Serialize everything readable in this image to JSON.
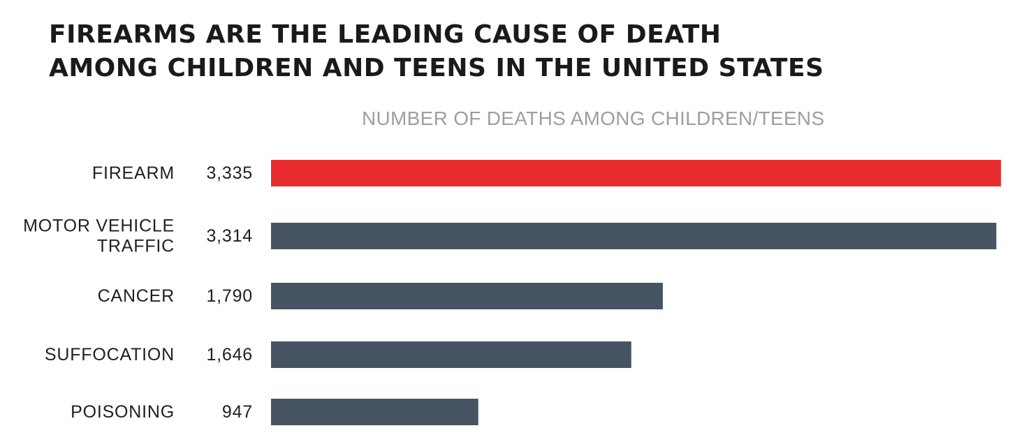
{
  "chart_data": {
    "type": "bar",
    "orientation": "horizontal",
    "title_lines": [
      "FIREARMS ARE THE LEADING CAUSE OF DEATH",
      "AMONG CHILDREN AND TEENS IN THE UNITED STATES"
    ],
    "subtitle": "NUMBER OF DEATHS AMONG CHILDREN/TEENS",
    "categories": [
      [
        "FIREARM"
      ],
      [
        "MOTOR VEHICLE",
        "TRAFFIC"
      ],
      [
        "CANCER"
      ],
      [
        "SUFFOCATION"
      ],
      [
        "POISONING"
      ]
    ],
    "values": [
      3335,
      3314,
      1790,
      1646,
      947
    ],
    "value_labels": [
      "3,335",
      "3,314",
      "1,790",
      "1,646",
      "947"
    ],
    "colors": [
      "#e82c2e",
      "#465461",
      "#465461",
      "#465461",
      "#465461"
    ],
    "xlim": [
      0,
      3335
    ]
  }
}
